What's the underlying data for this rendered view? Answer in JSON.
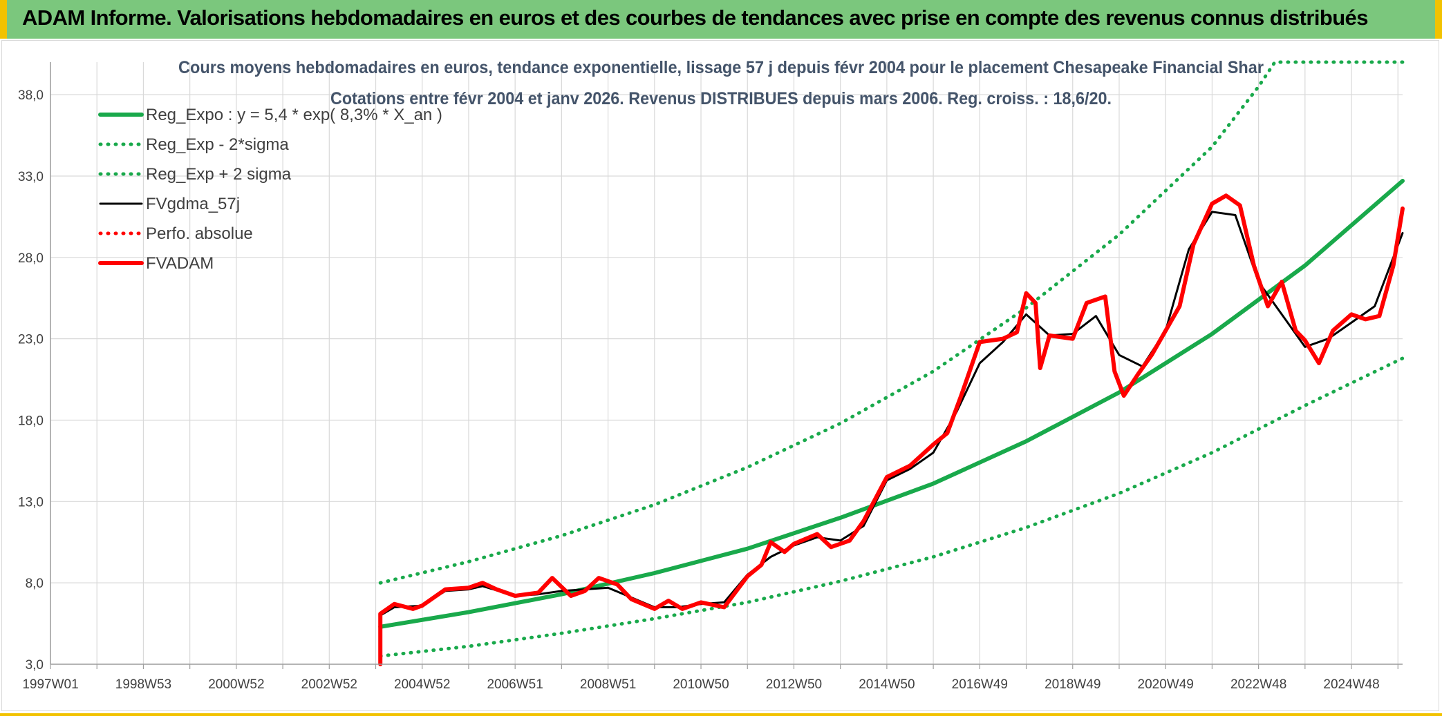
{
  "header": {
    "title": "ADAM Informe. Valorisations hebdomadaires en euros et des courbes de tendances avec prise en compte des revenus connus distribués"
  },
  "colors": {
    "header_bg": "#7bc77d",
    "accent_yellow": "#f2c200",
    "trend_green": "#19a94b",
    "gdma_black": "#000000",
    "adam_red": "#ff0000",
    "title_text": "#44546a"
  },
  "chart_data": {
    "type": "line",
    "title": "Cours moyens hebdomadaires en euros, tendance exponentielle, lissage 57 j depuis févr 2004 pour le placement Chesapeake Financial Shar",
    "subtitle": "Cotations entre févr 2004 et janv 2026. Revenus DISTRIBUES depuis mars 2006. Reg. croiss. : 18,6/20.",
    "xlabel": "",
    "ylabel": "",
    "x_range": [
      1997.0,
      2026.1
    ],
    "ylim": [
      3.0,
      40.0
    ],
    "y_ticks": [
      "3,0",
      "8,0",
      "13,0",
      "18,0",
      "23,0",
      "28,0",
      "33,0",
      "38,0"
    ],
    "y_tick_values": [
      3,
      8,
      13,
      18,
      23,
      28,
      33,
      38
    ],
    "x_tick_labels": [
      "1997W01",
      "1998W53",
      "2000W52",
      "2002W52",
      "2004W52",
      "2006W51",
      "2008W51",
      "2010W50",
      "2012W50",
      "2014W50",
      "2016W49",
      "2018W49",
      "2020W49",
      "2022W48",
      "2024W48"
    ],
    "x_tick_values": [
      1997.0,
      1999.0,
      2001.0,
      2003.0,
      2005.0,
      2007.0,
      2009.0,
      2011.0,
      2013.0,
      2015.0,
      2017.0,
      2019.0,
      2021.0,
      2023.0,
      2025.0
    ],
    "grid": true,
    "legend_position": "top-left",
    "series": [
      {
        "name": "Reg_Expo : y = 5,4 * exp( 8,3% *  X_an )",
        "style": "solid-thick",
        "color": "#19a94b",
        "points": [
          [
            2004.1,
            5.3
          ],
          [
            2006.0,
            6.2
          ],
          [
            2008.0,
            7.3
          ],
          [
            2010.0,
            8.6
          ],
          [
            2012.0,
            10.1
          ],
          [
            2014.0,
            12.0
          ],
          [
            2016.0,
            14.1
          ],
          [
            2018.0,
            16.7
          ],
          [
            2020.0,
            19.7
          ],
          [
            2022.0,
            23.3
          ],
          [
            2024.0,
            27.5
          ],
          [
            2026.1,
            32.7
          ]
        ]
      },
      {
        "name": "Reg_Exp - 2*sigma",
        "style": "dotted",
        "color": "#19a94b",
        "points": [
          [
            2004.1,
            3.5
          ],
          [
            2006.0,
            4.1
          ],
          [
            2008.0,
            4.9
          ],
          [
            2010.0,
            5.8
          ],
          [
            2012.0,
            6.8
          ],
          [
            2014.0,
            8.1
          ],
          [
            2016.0,
            9.6
          ],
          [
            2018.0,
            11.4
          ],
          [
            2020.0,
            13.5
          ],
          [
            2022.0,
            16.0
          ],
          [
            2024.0,
            18.9
          ],
          [
            2026.1,
            21.8
          ]
        ]
      },
      {
        "name": "Reg_Exp + 2 sigma",
        "style": "dotted",
        "color": "#19a94b",
        "points": [
          [
            2004.1,
            8.0
          ],
          [
            2006.0,
            9.3
          ],
          [
            2008.0,
            10.9
          ],
          [
            2010.0,
            12.8
          ],
          [
            2012.0,
            15.1
          ],
          [
            2014.0,
            17.8
          ],
          [
            2016.0,
            21.0
          ],
          [
            2018.0,
            24.9
          ],
          [
            2020.0,
            29.4
          ],
          [
            2022.0,
            34.8
          ],
          [
            2023.0,
            38.5
          ],
          [
            2023.35,
            40.0
          ],
          [
            2026.1,
            40.0
          ]
        ]
      },
      {
        "name": "FVgdma_57j",
        "style": "solid",
        "color": "#000000",
        "points": [
          [
            2004.1,
            6.0
          ],
          [
            2004.4,
            6.5
          ],
          [
            2005.0,
            6.6
          ],
          [
            2005.5,
            7.5
          ],
          [
            2006.0,
            7.6
          ],
          [
            2006.3,
            7.8
          ],
          [
            2007.0,
            7.2
          ],
          [
            2007.5,
            7.3
          ],
          [
            2008.0,
            7.5
          ],
          [
            2008.5,
            7.6
          ],
          [
            2009.0,
            7.7
          ],
          [
            2009.5,
            7.1
          ],
          [
            2010.0,
            6.5
          ],
          [
            2010.5,
            6.5
          ],
          [
            2011.0,
            6.7
          ],
          [
            2011.5,
            6.8
          ],
          [
            2012.0,
            8.5
          ],
          [
            2012.5,
            9.6
          ],
          [
            2013.0,
            10.3
          ],
          [
            2013.5,
            10.8
          ],
          [
            2014.0,
            10.6
          ],
          [
            2014.5,
            11.5
          ],
          [
            2015.0,
            14.3
          ],
          [
            2015.5,
            15.0
          ],
          [
            2016.0,
            16.0
          ],
          [
            2016.5,
            18.5
          ],
          [
            2017.0,
            21.5
          ],
          [
            2017.5,
            22.8
          ],
          [
            2018.0,
            24.5
          ],
          [
            2018.5,
            23.2
          ],
          [
            2019.0,
            23.3
          ],
          [
            2019.5,
            24.4
          ],
          [
            2020.0,
            22.0
          ],
          [
            2020.5,
            21.3
          ],
          [
            2021.0,
            23.5
          ],
          [
            2021.5,
            28.5
          ],
          [
            2022.0,
            30.8
          ],
          [
            2022.5,
            30.6
          ],
          [
            2023.0,
            26.5
          ],
          [
            2023.5,
            24.5
          ],
          [
            2024.0,
            22.5
          ],
          [
            2024.5,
            23.0
          ],
          [
            2025.0,
            24.0
          ],
          [
            2025.5,
            25.0
          ],
          [
            2026.1,
            29.5
          ]
        ]
      },
      {
        "name": "Perfo. absolue",
        "style": "dotted",
        "color": "#ff0000",
        "points": []
      },
      {
        "name": "FVADAM",
        "style": "solid-thick",
        "color": "#ff0000",
        "points": [
          [
            2004.1,
            3.0
          ],
          [
            2004.1,
            6.1
          ],
          [
            2004.4,
            6.7
          ],
          [
            2004.8,
            6.4
          ],
          [
            2005.0,
            6.6
          ],
          [
            2005.5,
            7.6
          ],
          [
            2006.0,
            7.7
          ],
          [
            2006.3,
            8.0
          ],
          [
            2006.6,
            7.6
          ],
          [
            2007.0,
            7.2
          ],
          [
            2007.5,
            7.4
          ],
          [
            2007.8,
            8.3
          ],
          [
            2008.2,
            7.2
          ],
          [
            2008.5,
            7.5
          ],
          [
            2008.8,
            8.3
          ],
          [
            2009.2,
            7.9
          ],
          [
            2009.5,
            7.0
          ],
          [
            2010.0,
            6.4
          ],
          [
            2010.3,
            6.9
          ],
          [
            2010.6,
            6.4
          ],
          [
            2011.0,
            6.8
          ],
          [
            2011.5,
            6.5
          ],
          [
            2012.0,
            8.4
          ],
          [
            2012.3,
            9.1
          ],
          [
            2012.5,
            10.5
          ],
          [
            2012.8,
            9.9
          ],
          [
            2013.0,
            10.4
          ],
          [
            2013.5,
            11.0
          ],
          [
            2013.8,
            10.2
          ],
          [
            2014.2,
            10.6
          ],
          [
            2014.5,
            11.8
          ],
          [
            2015.0,
            14.5
          ],
          [
            2015.5,
            15.2
          ],
          [
            2016.0,
            16.5
          ],
          [
            2016.3,
            17.2
          ],
          [
            2016.6,
            19.5
          ],
          [
            2017.0,
            22.8
          ],
          [
            2017.5,
            23.0
          ],
          [
            2017.8,
            23.4
          ],
          [
            2018.0,
            25.8
          ],
          [
            2018.2,
            25.2
          ],
          [
            2018.3,
            21.2
          ],
          [
            2018.5,
            23.2
          ],
          [
            2019.0,
            23.0
          ],
          [
            2019.3,
            25.2
          ],
          [
            2019.7,
            25.6
          ],
          [
            2019.9,
            21.0
          ],
          [
            2020.1,
            19.5
          ],
          [
            2020.4,
            20.8
          ],
          [
            2020.7,
            22.0
          ],
          [
            2021.0,
            23.5
          ],
          [
            2021.3,
            25.0
          ],
          [
            2021.6,
            28.8
          ],
          [
            2022.0,
            31.3
          ],
          [
            2022.3,
            31.8
          ],
          [
            2022.6,
            31.2
          ],
          [
            2022.9,
            27.5
          ],
          [
            2023.2,
            25.0
          ],
          [
            2023.5,
            26.5
          ],
          [
            2023.8,
            23.5
          ],
          [
            2024.0,
            22.9
          ],
          [
            2024.3,
            21.5
          ],
          [
            2024.6,
            23.5
          ],
          [
            2025.0,
            24.5
          ],
          [
            2025.3,
            24.2
          ],
          [
            2025.6,
            24.4
          ],
          [
            2025.9,
            27.5
          ],
          [
            2026.1,
            31.0
          ]
        ]
      }
    ]
  }
}
